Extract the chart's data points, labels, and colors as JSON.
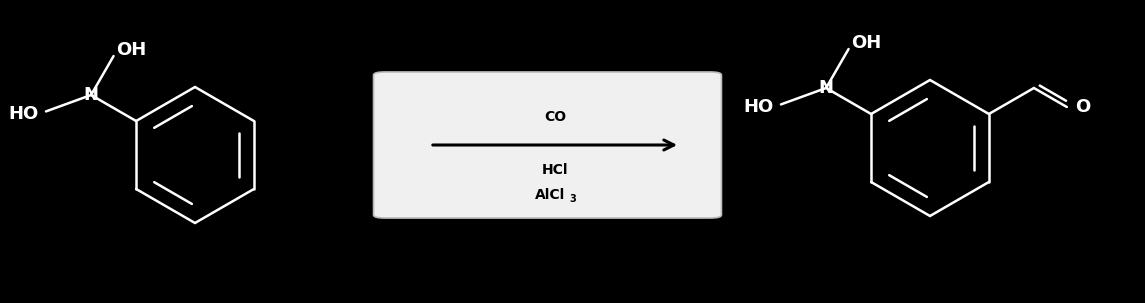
{
  "bg_color": "#000000",
  "arrow_box_facecolor": "#f0f0f0",
  "arrow_box_edgecolor": "#bbbbbb",
  "arrow_color": "#000000",
  "text_color": "#000000",
  "molecule_color": "#ffffff",
  "arrow_label_above": "CO",
  "arrow_label_below1": "HCl",
  "arrow_label_below2": "AlCl",
  "arrow_label_sub": "3",
  "lw": 1.8,
  "fontsize_mol": 13,
  "fontsize_arrow": 10
}
